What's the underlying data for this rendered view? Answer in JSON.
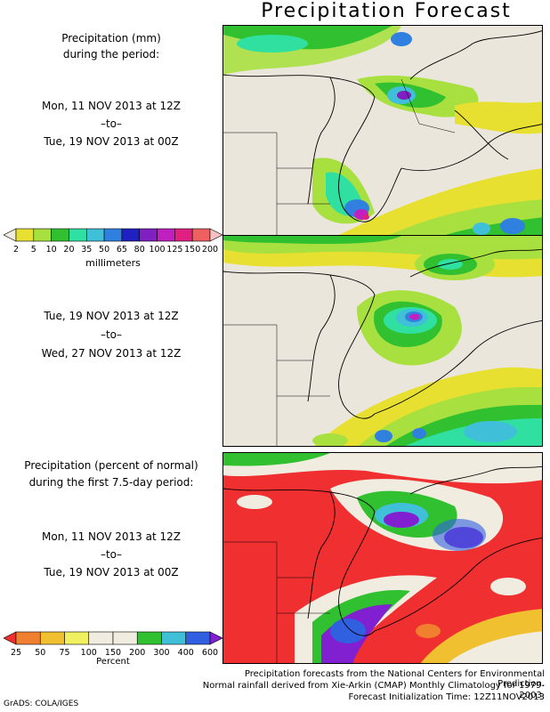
{
  "title": "Precipitation Forecast",
  "panel1": {
    "heading_line1": "Precipitation (mm)",
    "heading_line2": "during the period:",
    "start": "Mon, 11 NOV 2013 at 12Z",
    "sep": "–to–",
    "end": "Tue, 19 NOV 2013 at 00Z"
  },
  "panel2": {
    "start": "Tue, 19 NOV 2013 at 12Z",
    "sep": "–to–",
    "end": "Wed, 27 NOV 2013 at 12Z"
  },
  "panel3": {
    "heading_line1": "Precipitation (percent of normal)",
    "heading_line2": "during the first 7.5-day period:",
    "start": "Mon, 11 NOV 2013 at 12Z",
    "sep": "–to–",
    "end": "Tue, 19 NOV 2013 at 00Z"
  },
  "legend_mm": {
    "ticks": [
      "2",
      "5",
      "10",
      "20",
      "35",
      "50",
      "65",
      "80",
      "100",
      "125",
      "150",
      "200"
    ],
    "unit": "millimeters",
    "colors": [
      "#f0ece0",
      "#e8e030",
      "#a8e040",
      "#30c030",
      "#30e0a0",
      "#40c0d8",
      "#3080e0",
      "#2020c0",
      "#8020c0",
      "#c020c0",
      "#e02080",
      "#f06060",
      "#f8c0c0"
    ]
  },
  "legend_pct": {
    "ticks": [
      "25",
      "50",
      "75",
      "100",
      "150",
      "200",
      "300",
      "400",
      "600"
    ],
    "unit": "Percent",
    "colors": [
      "#f03030",
      "#f08030",
      "#f0c030",
      "#f0f060",
      "#f0ece0",
      "#f0ece0",
      "#30c030",
      "#40c0d8",
      "#3060e0",
      "#8020d0"
    ]
  },
  "footer": {
    "line1": "Precipitation forecasts from the National Centers for Environmental Prediction.",
    "line2": "Normal rainfall derived from Xie-Arkin (CMAP) Monthly Climatology for 1979-2003.",
    "line3": "Forecast Initialization Time: 12Z11NOV2013",
    "credit": "GrADS: COLA/IGES"
  }
}
